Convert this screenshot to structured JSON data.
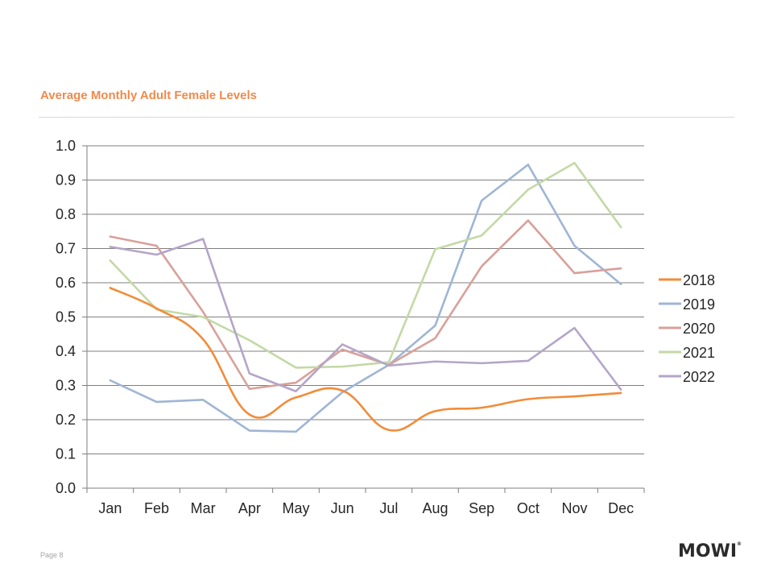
{
  "page": {
    "title": "Average Monthly Adult Female Levels",
    "page_number": "Page 8",
    "logo_text": "MOWI",
    "logo_mark": "®"
  },
  "chart_data": {
    "type": "line",
    "title": "Average Monthly Adult Female Levels",
    "xlabel": "",
    "ylabel": "",
    "categories": [
      "Jan",
      "Feb",
      "Mar",
      "Apr",
      "May",
      "Jun",
      "Jul",
      "Aug",
      "Sep",
      "Oct",
      "Nov",
      "Dec"
    ],
    "ylim": [
      0.0,
      1.0
    ],
    "yticks": [
      "0.0",
      "0.1",
      "0.2",
      "0.3",
      "0.4",
      "0.5",
      "0.6",
      "0.7",
      "0.8",
      "0.9",
      "1.0"
    ],
    "grid": true,
    "legend": "right",
    "series": [
      {
        "name": "2018",
        "color": "#F28C38",
        "smooth": true,
        "values": [
          0.585,
          0.525,
          0.435,
          0.215,
          0.265,
          0.285,
          0.17,
          0.225,
          0.235,
          0.26,
          0.268,
          0.278
        ]
      },
      {
        "name": "2019",
        "color": "#9FB5D5",
        "smooth": false,
        "values": [
          0.315,
          0.252,
          0.258,
          0.168,
          0.165,
          0.28,
          0.36,
          0.475,
          0.84,
          0.945,
          0.708,
          0.596
        ]
      },
      {
        "name": "2020",
        "color": "#D9A09A",
        "smooth": false,
        "values": [
          0.735,
          0.708,
          0.515,
          0.29,
          0.308,
          0.405,
          0.36,
          0.438,
          0.648,
          0.782,
          0.628,
          0.642
        ]
      },
      {
        "name": "2021",
        "color": "#C3D9A5",
        "smooth": false,
        "values": [
          0.665,
          0.522,
          0.5,
          0.432,
          0.352,
          0.355,
          0.368,
          0.698,
          0.738,
          0.872,
          0.95,
          0.762
        ]
      },
      {
        "name": "2022",
        "color": "#B4A5C8",
        "smooth": false,
        "values": [
          0.705,
          0.682,
          0.728,
          0.335,
          0.283,
          0.42,
          0.358,
          0.37,
          0.365,
          0.372,
          0.468,
          0.288
        ]
      }
    ]
  }
}
